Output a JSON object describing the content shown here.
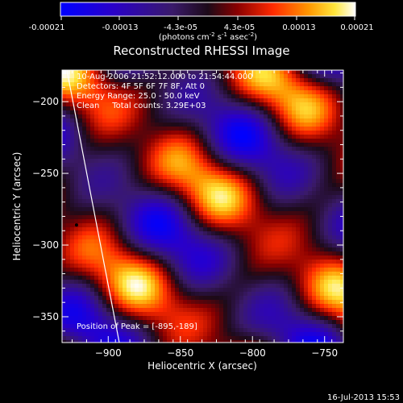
{
  "colorbar": {
    "ticks": [
      "-0.00021",
      "-0.00013",
      "-4.3e-05",
      "4.3e-05",
      "0.00013",
      "0.00021"
    ],
    "unit_label": "(photons cm",
    "unit_sup1": "-2",
    "unit_mid": " s",
    "unit_sup2": "-1",
    "unit_mid2": " asec",
    "unit_sup3": "-2",
    "unit_end": ")"
  },
  "chart_data": {
    "type": "heatmap",
    "title": "Reconstructed RHESSI Image",
    "xlabel": "Heliocentric X (arcsec)",
    "ylabel": "Heliocentric Y (arcsec)",
    "xlim": [
      -932,
      -737
    ],
    "ylim": [
      -368,
      -178
    ],
    "xticks": [
      -900,
      -850,
      -800,
      -750
    ],
    "yticks": [
      -200,
      -250,
      -300,
      -350
    ],
    "xtick_labels": [
      "−900",
      "−850",
      "−800",
      "−750"
    ],
    "ytick_labels": [
      "−200",
      "−250",
      "−300",
      "−350"
    ],
    "value_range": [
      -0.00021,
      0.00021
    ],
    "colormap": "rhessi-3",
    "annotations": [
      "10-Aug-2006 21:52:12.000 to 21:54:44.000",
      "Detectors: 4F 5F 6F 7F 8F, Att 0",
      "Energy Range: 25.0 - 50.0 keV",
      "Clean     Total counts: 3.29E+03"
    ],
    "peak_label": "Position of Peak = [-895,-189]",
    "peak": [
      -895,
      -189
    ],
    "marker": [
      -922,
      -286
    ]
  },
  "footer": {
    "timestamp": "16-Jul-2013 15:53"
  }
}
